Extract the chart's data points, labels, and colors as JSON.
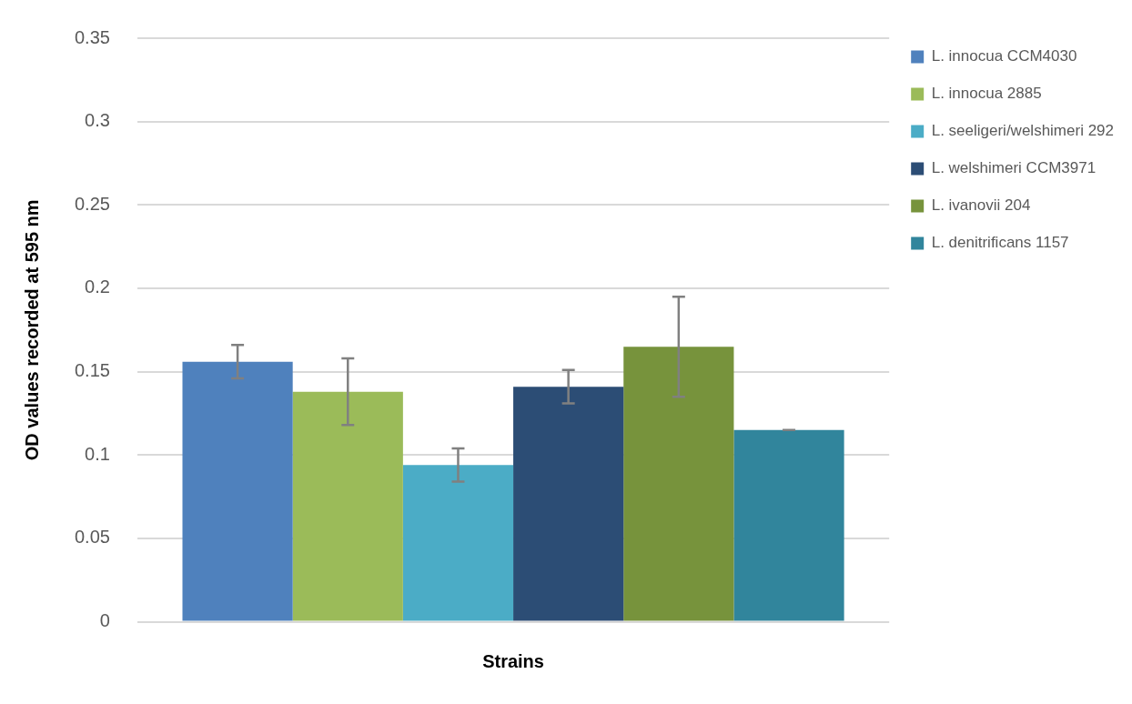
{
  "chart_data": {
    "type": "bar",
    "xlabel": "Strains",
    "ylabel": "OD values recorded at 595 nm",
    "categories": [
      null
    ],
    "series": [
      {
        "name": "L. innocua CCM4030",
        "color": "#4f81bd",
        "values": [
          0.156
        ],
        "errors": [
          0.01
        ]
      },
      {
        "name": "L. innocua 2885",
        "color": "#9bbb59",
        "values": [
          0.138
        ],
        "errors": [
          0.02
        ]
      },
      {
        "name": "L. seeligeri/welshimeri 292",
        "color": "#4bacc6",
        "values": [
          0.094
        ],
        "errors": [
          0.01
        ]
      },
      {
        "name": "L. welshimeri CCM3971",
        "color": "#2c4d75",
        "values": [
          0.141
        ],
        "errors": [
          0.01
        ]
      },
      {
        "name": "L. ivanovii 204",
        "color": "#77933c",
        "values": [
          0.165
        ],
        "errors": [
          0.03
        ]
      },
      {
        "name": "L. denitrificans 1157",
        "color": "#31859c",
        "values": [
          0.115
        ],
        "errors": [
          0
        ]
      }
    ],
    "ylim": [
      0,
      0.35
    ],
    "yticks": [
      0,
      0.05,
      0.1,
      0.15,
      0.2,
      0.25,
      0.3,
      0.35
    ],
    "grid": "y",
    "legend": "right"
  }
}
